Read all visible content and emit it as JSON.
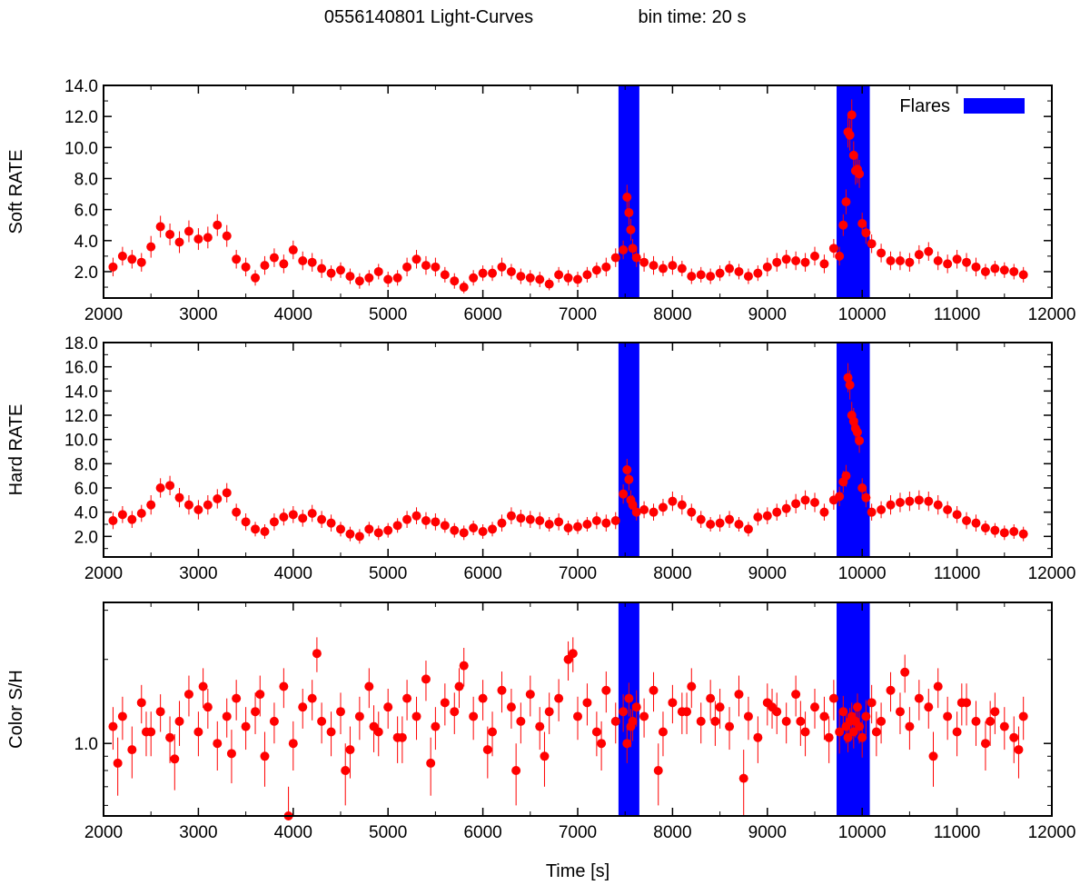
{
  "figure": {
    "title_left": "0556140801 Light-Curves",
    "title_right": "bin time: 20 s",
    "xlabel": "Time [s]",
    "colors": {
      "data": "#ff0000",
      "flare": "#0000ff",
      "axis": "#000000"
    }
  },
  "chart_data": [
    {
      "type": "scatter",
      "name": "soft",
      "ylabel": "Soft RATE",
      "xlim": [
        2000,
        12000
      ],
      "ylim": [
        0.3,
        14.0
      ],
      "xticks": [
        2000,
        3000,
        4000,
        5000,
        6000,
        7000,
        8000,
        9000,
        10000,
        11000,
        12000
      ],
      "yticks": [
        2.0,
        4.0,
        6.0,
        8.0,
        10.0,
        12.0,
        14.0
      ],
      "ytick_labels": [
        "2.0",
        "4.0",
        "6.0",
        "8.0",
        "10.0",
        "12.0",
        "14.0"
      ],
      "legend": {
        "label": "Flares",
        "position": "top-right"
      },
      "flares": [
        [
          7430,
          7650
        ],
        [
          9730,
          10080
        ]
      ],
      "x": [
        2100,
        2200,
        2300,
        2400,
        2500,
        2600,
        2700,
        2800,
        2900,
        3000,
        3100,
        3200,
        3300,
        3400,
        3500,
        3600,
        3700,
        3800,
        3900,
        4000,
        4100,
        4200,
        4300,
        4400,
        4500,
        4600,
        4700,
        4800,
        4900,
        5000,
        5100,
        5200,
        5300,
        5400,
        5500,
        5600,
        5700,
        5800,
        5900,
        6000,
        6100,
        6200,
        6300,
        6400,
        6500,
        6600,
        6700,
        6800,
        6900,
        7000,
        7100,
        7200,
        7300,
        7400,
        7480,
        7520,
        7540,
        7560,
        7580,
        7620,
        7700,
        7800,
        7900,
        8000,
        8100,
        8200,
        8300,
        8400,
        8500,
        8600,
        8700,
        8800,
        8900,
        9000,
        9100,
        9200,
        9300,
        9400,
        9500,
        9600,
        9700,
        9760,
        9800,
        9830,
        9850,
        9870,
        9890,
        9910,
        9930,
        9950,
        9970,
        10000,
        10040,
        10100,
        10200,
        10300,
        10400,
        10500,
        10600,
        10700,
        10800,
        10900,
        11000,
        11100,
        11200,
        11300,
        11400,
        11500,
        11600,
        11700
      ],
      "y": [
        2.3,
        3.0,
        2.8,
        2.6,
        3.6,
        4.9,
        4.4,
        3.9,
        4.6,
        4.1,
        4.2,
        5.0,
        4.3,
        2.8,
        2.3,
        1.6,
        2.4,
        2.9,
        2.5,
        3.4,
        2.7,
        2.6,
        2.2,
        1.9,
        2.1,
        1.7,
        1.4,
        1.6,
        2.0,
        1.5,
        1.6,
        2.3,
        2.8,
        2.4,
        2.3,
        1.8,
        1.4,
        1.0,
        1.6,
        1.9,
        1.9,
        2.3,
        2.0,
        1.7,
        1.6,
        1.5,
        1.2,
        1.8,
        1.6,
        1.5,
        1.8,
        2.1,
        2.3,
        2.9,
        3.4,
        6.8,
        5.8,
        4.7,
        3.5,
        2.9,
        2.6,
        2.4,
        2.2,
        2.4,
        2.2,
        1.7,
        1.8,
        1.7,
        1.9,
        2.2,
        2.0,
        1.7,
        1.9,
        2.3,
        2.6,
        2.8,
        2.7,
        2.6,
        3.0,
        2.5,
        3.5,
        3.0,
        5.0,
        6.5,
        11.0,
        10.8,
        12.1,
        9.5,
        8.5,
        8.6,
        8.3,
        5.1,
        4.5,
        3.8,
        3.2,
        2.7,
        2.7,
        2.6,
        3.1,
        3.3,
        2.7,
        2.5,
        2.8,
        2.6,
        2.3,
        2.0,
        2.2,
        2.1,
        2.0,
        1.8
      ],
      "yerr": [
        0.6,
        0.6,
        0.6,
        0.6,
        0.7,
        0.7,
        0.7,
        0.7,
        0.7,
        0.7,
        0.7,
        0.7,
        0.7,
        0.6,
        0.6,
        0.5,
        0.6,
        0.6,
        0.6,
        0.6,
        0.6,
        0.6,
        0.6,
        0.5,
        0.5,
        0.5,
        0.5,
        0.5,
        0.5,
        0.5,
        0.5,
        0.6,
        0.6,
        0.6,
        0.6,
        0.5,
        0.5,
        0.4,
        0.5,
        0.5,
        0.5,
        0.6,
        0.5,
        0.5,
        0.5,
        0.5,
        0.4,
        0.5,
        0.5,
        0.5,
        0.5,
        0.5,
        0.6,
        0.6,
        0.6,
        0.8,
        0.8,
        0.7,
        0.6,
        0.6,
        0.6,
        0.6,
        0.5,
        0.6,
        0.5,
        0.5,
        0.5,
        0.5,
        0.5,
        0.5,
        0.5,
        0.5,
        0.5,
        0.6,
        0.6,
        0.6,
        0.6,
        0.6,
        0.6,
        0.6,
        0.6,
        0.6,
        0.7,
        0.8,
        1.0,
        1.0,
        1.0,
        0.9,
        0.9,
        0.9,
        0.9,
        0.7,
        0.7,
        0.6,
        0.6,
        0.6,
        0.6,
        0.6,
        0.6,
        0.6,
        0.6,
        0.6,
        0.6,
        0.6,
        0.6,
        0.5,
        0.5,
        0.5,
        0.5,
        0.5
      ]
    },
    {
      "type": "scatter",
      "name": "hard",
      "ylabel": "Hard RATE",
      "xlim": [
        2000,
        12000
      ],
      "ylim": [
        0.3,
        18.0
      ],
      "xticks": [
        2000,
        3000,
        4000,
        5000,
        6000,
        7000,
        8000,
        9000,
        10000,
        11000,
        12000
      ],
      "yticks": [
        2.0,
        4.0,
        6.0,
        8.0,
        10.0,
        12.0,
        14.0,
        16.0,
        18.0
      ],
      "ytick_labels": [
        "2.0",
        "4.0",
        "6.0",
        "8.0",
        "10.0",
        "12.0",
        "14.0",
        "16.0",
        "18.0"
      ],
      "flares": [
        [
          7430,
          7650
        ],
        [
          9730,
          10080
        ]
      ],
      "x": [
        2100,
        2200,
        2300,
        2400,
        2500,
        2600,
        2700,
        2800,
        2900,
        3000,
        3100,
        3200,
        3300,
        3400,
        3500,
        3600,
        3700,
        3800,
        3900,
        4000,
        4100,
        4200,
        4300,
        4400,
        4500,
        4600,
        4700,
        4800,
        4900,
        5000,
        5100,
        5200,
        5300,
        5400,
        5500,
        5600,
        5700,
        5800,
        5900,
        6000,
        6100,
        6200,
        6300,
        6400,
        6500,
        6600,
        6700,
        6800,
        6900,
        7000,
        7100,
        7200,
        7300,
        7400,
        7480,
        7520,
        7540,
        7560,
        7580,
        7620,
        7700,
        7800,
        7900,
        8000,
        8100,
        8200,
        8300,
        8400,
        8500,
        8600,
        8700,
        8800,
        8900,
        9000,
        9100,
        9200,
        9300,
        9400,
        9500,
        9600,
        9700,
        9760,
        9800,
        9830,
        9850,
        9870,
        9890,
        9910,
        9930,
        9950,
        9970,
        10000,
        10040,
        10100,
        10200,
        10300,
        10400,
        10500,
        10600,
        10700,
        10800,
        10900,
        11000,
        11100,
        11200,
        11300,
        11400,
        11500,
        11600,
        11700
      ],
      "y": [
        3.3,
        3.8,
        3.4,
        3.9,
        4.6,
        6.0,
        6.2,
        5.2,
        4.6,
        4.2,
        4.6,
        5.1,
        5.6,
        4.0,
        3.2,
        2.6,
        2.4,
        3.2,
        3.6,
        3.8,
        3.5,
        3.9,
        3.4,
        3.1,
        2.6,
        2.2,
        2.0,
        2.6,
        2.3,
        2.5,
        2.9,
        3.4,
        3.7,
        3.3,
        3.2,
        2.9,
        2.5,
        2.3,
        2.7,
        2.4,
        2.6,
        3.1,
        3.7,
        3.5,
        3.4,
        3.3,
        3.0,
        3.2,
        2.7,
        2.8,
        3.0,
        3.3,
        3.1,
        3.3,
        5.5,
        7.5,
        6.7,
        5.0,
        4.6,
        4.0,
        4.2,
        4.0,
        4.4,
        4.9,
        4.6,
        4.0,
        3.4,
        3.0,
        3.1,
        3.4,
        3.0,
        2.6,
        3.6,
        3.7,
        4.0,
        4.3,
        4.7,
        5.0,
        4.8,
        4.0,
        5.0,
        5.3,
        6.5,
        7.0,
        15.1,
        14.5,
        12.0,
        11.5,
        10.9,
        10.6,
        9.9,
        6.0,
        5.2,
        4.0,
        4.2,
        4.6,
        4.8,
        4.9,
        5.0,
        4.9,
        4.6,
        4.2,
        3.8,
        3.3,
        3.1,
        2.7,
        2.5,
        2.3,
        2.4,
        2.2
      ],
      "yerr": [
        0.7,
        0.7,
        0.7,
        0.7,
        0.8,
        0.8,
        0.8,
        0.8,
        0.8,
        0.8,
        0.8,
        0.8,
        0.8,
        0.7,
        0.7,
        0.6,
        0.6,
        0.7,
        0.7,
        0.7,
        0.7,
        0.7,
        0.7,
        0.7,
        0.6,
        0.6,
        0.6,
        0.6,
        0.6,
        0.6,
        0.6,
        0.7,
        0.7,
        0.7,
        0.7,
        0.6,
        0.6,
        0.6,
        0.6,
        0.6,
        0.6,
        0.7,
        0.7,
        0.7,
        0.7,
        0.7,
        0.6,
        0.7,
        0.6,
        0.6,
        0.6,
        0.7,
        0.7,
        0.7,
        0.8,
        0.9,
        0.9,
        0.8,
        0.8,
        0.7,
        0.7,
        0.7,
        0.7,
        0.8,
        0.8,
        0.7,
        0.7,
        0.6,
        0.7,
        0.7,
        0.6,
        0.6,
        0.7,
        0.7,
        0.7,
        0.7,
        0.8,
        0.8,
        0.8,
        0.7,
        0.8,
        0.8,
        0.9,
        0.9,
        1.2,
        1.2,
        1.1,
        1.1,
        1.1,
        1.1,
        1.0,
        0.8,
        0.8,
        0.7,
        0.7,
        0.8,
        0.8,
        0.8,
        0.8,
        0.8,
        0.8,
        0.7,
        0.7,
        0.7,
        0.7,
        0.6,
        0.6,
        0.6,
        0.6,
        0.6
      ]
    },
    {
      "type": "scatter",
      "name": "color",
      "ylabel": "Color S/H",
      "yscale": "log",
      "xlim": [
        2000,
        12000
      ],
      "ylim": [
        0.55,
        3.2
      ],
      "xticks": [
        2000,
        3000,
        4000,
        5000,
        6000,
        7000,
        8000,
        9000,
        10000,
        11000,
        12000
      ],
      "yticks": [
        1.0
      ],
      "ytick_labels": [
        "1.0"
      ],
      "flares": [
        [
          7430,
          7650
        ],
        [
          9730,
          10080
        ]
      ],
      "x": [
        2100,
        2200,
        2300,
        2400,
        2500,
        2600,
        2700,
        2800,
        2900,
        3000,
        3100,
        3200,
        3300,
        3400,
        3500,
        3600,
        3700,
        3800,
        3900,
        4000,
        4100,
        4200,
        4300,
        4400,
        4500,
        4600,
        4700,
        4800,
        4900,
        5000,
        5100,
        5200,
        5300,
        5400,
        5500,
        5600,
        5700,
        5800,
        5900,
        6000,
        6100,
        6200,
        6300,
        6400,
        6500,
        6600,
        6700,
        6800,
        6900,
        7000,
        7100,
        7200,
        7300,
        7400,
        7480,
        7520,
        7540,
        7560,
        7580,
        7620,
        7700,
        7800,
        7900,
        8000,
        8100,
        8200,
        8300,
        8400,
        8500,
        8600,
        8700,
        8800,
        8900,
        9000,
        9100,
        9200,
        9300,
        9400,
        9500,
        9600,
        9700,
        9760,
        9800,
        9830,
        9850,
        9870,
        9890,
        9910,
        9930,
        9950,
        9970,
        10000,
        10040,
        10100,
        10200,
        10300,
        10400,
        10500,
        10600,
        10700,
        10800,
        10900,
        11000,
        11100,
        11200,
        11300,
        11400,
        11500,
        11600,
        11700,
        2150,
        2450,
        2750,
        3050,
        3350,
        3650,
        3950,
        4250,
        4550,
        4850,
        5150,
        5450,
        5750,
        6050,
        6350,
        6650,
        6950,
        7250,
        7850,
        8150,
        8450,
        8750,
        9050,
        9350,
        9650,
        10150,
        10450,
        10750,
        11050,
        11350,
        11650
      ],
      "y": [
        1.15,
        1.25,
        0.95,
        1.4,
        1.1,
        1.3,
        1.05,
        1.2,
        1.5,
        1.1,
        1.35,
        1.0,
        1.25,
        1.45,
        1.15,
        1.3,
        0.9,
        1.2,
        1.6,
        1.0,
        1.35,
        1.45,
        1.2,
        1.1,
        1.3,
        0.95,
        1.25,
        1.6,
        1.1,
        1.35,
        1.05,
        1.45,
        1.25,
        1.7,
        1.15,
        1.4,
        1.3,
        1.9,
        1.25,
        1.45,
        1.1,
        1.55,
        1.35,
        1.2,
        1.5,
        1.15,
        1.3,
        1.45,
        2.0,
        1.25,
        1.4,
        1.1,
        1.55,
        1.2,
        1.3,
        1.0,
        1.45,
        1.15,
        1.2,
        1.35,
        1.25,
        1.55,
        1.1,
        1.4,
        1.3,
        1.6,
        1.2,
        1.45,
        1.35,
        1.15,
        1.5,
        1.25,
        1.05,
        1.4,
        1.3,
        1.2,
        1.5,
        1.1,
        1.35,
        1.25,
        1.45,
        1.1,
        1.3,
        1.15,
        1.05,
        1.2,
        1.25,
        1.1,
        1.2,
        1.35,
        1.15,
        1.05,
        1.25,
        1.4,
        1.2,
        1.55,
        1.3,
        1.15,
        1.45,
        1.35,
        1.6,
        1.25,
        1.1,
        1.4,
        1.2,
        1.0,
        1.3,
        1.15,
        1.05,
        1.25,
        0.85,
        1.1,
        0.88,
        1.6,
        0.92,
        1.5,
        0.55,
        2.1,
        0.8,
        1.15,
        1.05,
        0.85,
        1.6,
        0.95,
        0.8,
        0.9,
        2.1,
        1.0,
        0.8,
        1.3,
        1.2,
        0.75,
        1.35,
        1.2,
        1.05,
        1.1,
        1.8,
        0.9,
        1.4,
        1.2,
        0.95
      ],
      "yerr": [
        0.2,
        0.22,
        0.2,
        0.22,
        0.2,
        0.2,
        0.2,
        0.22,
        0.25,
        0.2,
        0.22,
        0.2,
        0.2,
        0.24,
        0.2,
        0.22,
        0.2,
        0.2,
        0.26,
        0.2,
        0.22,
        0.24,
        0.2,
        0.2,
        0.22,
        0.2,
        0.22,
        0.26,
        0.2,
        0.22,
        0.2,
        0.24,
        0.22,
        0.28,
        0.2,
        0.24,
        0.22,
        0.3,
        0.22,
        0.24,
        0.2,
        0.26,
        0.22,
        0.2,
        0.25,
        0.2,
        0.22,
        0.25,
        0.32,
        0.22,
        0.24,
        0.2,
        0.26,
        0.2,
        0.2,
        0.15,
        0.2,
        0.18,
        0.18,
        0.2,
        0.2,
        0.25,
        0.2,
        0.22,
        0.22,
        0.26,
        0.2,
        0.24,
        0.22,
        0.2,
        0.25,
        0.22,
        0.2,
        0.24,
        0.22,
        0.2,
        0.25,
        0.2,
        0.22,
        0.22,
        0.24,
        0.18,
        0.18,
        0.15,
        0.12,
        0.14,
        0.15,
        0.14,
        0.15,
        0.16,
        0.15,
        0.16,
        0.18,
        0.22,
        0.2,
        0.25,
        0.22,
        0.2,
        0.24,
        0.22,
        0.26,
        0.22,
        0.2,
        0.24,
        0.22,
        0.2,
        0.22,
        0.2,
        0.2,
        0.22,
        0.2,
        0.2,
        0.2,
        0.26,
        0.2,
        0.25,
        0.15,
        0.3,
        0.2,
        0.22,
        0.2,
        0.2,
        0.26,
        0.2,
        0.2,
        0.2,
        0.3,
        0.2,
        0.2,
        0.22,
        0.22,
        0.2,
        0.22,
        0.22,
        0.2,
        0.2,
        0.28,
        0.2,
        0.24,
        0.22,
        0.2
      ]
    }
  ]
}
